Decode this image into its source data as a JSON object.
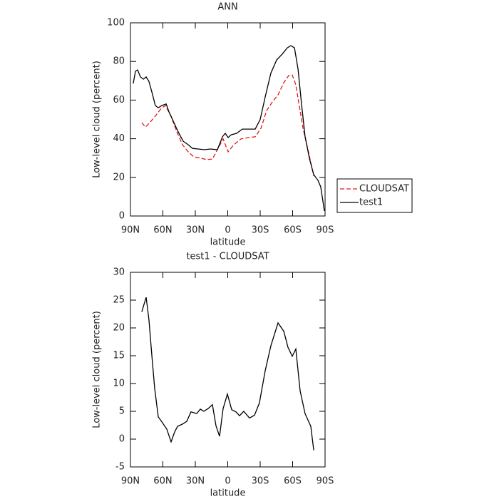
{
  "chart_data": [
    {
      "type": "line",
      "title": "ANN",
      "xlabel": "latitude",
      "ylabel": "Low-level cloud (percent)",
      "xlim": [
        90,
        -90
      ],
      "xticks": [
        {
          "value": 90,
          "label": "90N"
        },
        {
          "value": 60,
          "label": "60N"
        },
        {
          "value": 30,
          "label": "30N"
        },
        0,
        {
          "value": -30,
          "label": "30S"
        },
        {
          "value": -60,
          "label": "60S"
        },
        {
          "value": -90,
          "label": "90S"
        }
      ],
      "ylim": [
        0,
        100
      ],
      "yticks": [
        0,
        20,
        40,
        60,
        80,
        100
      ],
      "legend": "right",
      "series": [
        {
          "name": "CLOUDSAT",
          "color": "#e41a1c",
          "linestyle": "dashed",
          "x": [
            79.5,
            76.2,
            72.2,
            67,
            61.6,
            57.7,
            52.4,
            47.1,
            41.9,
            36.6,
            31.3,
            24.7,
            19.5,
            14.2,
            9.6,
            4.3,
            -0.3,
            -5.6,
            -12.2,
            -18.8,
            -25.4,
            -30.7,
            -36,
            -41.2,
            -46.5,
            -51.8,
            -56.4,
            -59.7,
            -63,
            -66.3,
            -69.6,
            -74.2,
            -79.5
          ],
          "values": [
            48.3,
            46,
            48.3,
            51.7,
            55.7,
            57.2,
            51.7,
            43.5,
            36.9,
            33.2,
            30.6,
            29.9,
            29.2,
            29.5,
            34.3,
            39.9,
            33.2,
            36.9,
            39.9,
            40.6,
            41,
            45.4,
            54.6,
            59,
            62.7,
            69,
            72.7,
            73,
            67.9,
            56.5,
            45.4,
            34.3,
            20.7
          ]
        },
        {
          "name": "test1",
          "color": "#000000",
          "linestyle": "solid",
          "x": [
            87.4,
            85.4,
            83.4,
            80.8,
            78,
            75.5,
            72.9,
            70,
            67,
            64.3,
            61,
            57,
            54.4,
            50.4,
            45.8,
            41.2,
            36.6,
            32.6,
            27.4,
            21.4,
            16.1,
            9.6,
            4.9,
            2.3,
            -0.3,
            -3,
            -8.2,
            -13.5,
            -20,
            -25.4,
            -30,
            -34.6,
            -39.9,
            -45.2,
            -50.4,
            -55,
            -58.4,
            -61.7,
            -65,
            -68.2,
            -71.5,
            -75.5,
            -79.5,
            -83.4,
            -86,
            -89.4
          ],
          "values": [
            68.6,
            74.9,
            75.6,
            72,
            70.8,
            72,
            69.7,
            63.8,
            57.2,
            56,
            57.2,
            58,
            53.9,
            49,
            43.5,
            38.7,
            36.9,
            35,
            34.7,
            34.3,
            34.7,
            34.3,
            41,
            42.8,
            40.6,
            42,
            42.8,
            45,
            45,
            45,
            50,
            61.6,
            74,
            80.8,
            83.8,
            87,
            88.2,
            87,
            76,
            58.3,
            41.3,
            29.9,
            21.4,
            18.5,
            15.1,
            2.6
          ]
        }
      ]
    },
    {
      "type": "line",
      "title": "test1 - CLOUDSAT",
      "xlabel": "latitude",
      "ylabel": "Low-level cloud (percent)",
      "xlim": [
        90,
        -90
      ],
      "xticks": [
        {
          "value": 90,
          "label": "90N"
        },
        {
          "value": 60,
          "label": "60N"
        },
        {
          "value": 30,
          "label": "30N"
        },
        0,
        {
          "value": -30,
          "label": "30S"
        },
        {
          "value": -60,
          "label": "60S"
        },
        {
          "value": -90,
          "label": "90S"
        }
      ],
      "ylim": [
        -5,
        30
      ],
      "yticks": [
        -5,
        0,
        5,
        10,
        15,
        20,
        25,
        30
      ],
      "series": [
        {
          "color": "#000000",
          "linestyle": "solid",
          "x": [
            79.5,
            75.5,
            72.9,
            70,
            67.6,
            64.3,
            61,
            56.4,
            52.4,
            49.1,
            46.5,
            41.9,
            37.9,
            34,
            28.7,
            25.4,
            22.1,
            18.1,
            14.2,
            10.9,
            7.6,
            4.3,
            0.3,
            -3.6,
            -7.6,
            -10.9,
            -14.8,
            -20.1,
            -24.7,
            -29.3,
            -34.6,
            -39.9,
            -46.5,
            -51.8,
            -55.7,
            -59.7,
            -63,
            -66.9,
            -71.5,
            -76.8,
            -79.5
          ],
          "values": [
            22.9,
            25.5,
            21.5,
            14.6,
            9.1,
            4,
            3.1,
            1.8,
            -0.5,
            1.3,
            2.3,
            2.7,
            3.2,
            4.9,
            4.6,
            5.4,
            5,
            5.5,
            6.2,
            2.4,
            0.5,
            5.5,
            8.1,
            5.3,
            4.9,
            4.2,
            5,
            3.8,
            4.3,
            6.5,
            12.3,
            16.8,
            20.9,
            19.4,
            16.5,
            14.9,
            16.2,
            8.7,
            4.6,
            2.3,
            -2
          ]
        }
      ]
    }
  ]
}
